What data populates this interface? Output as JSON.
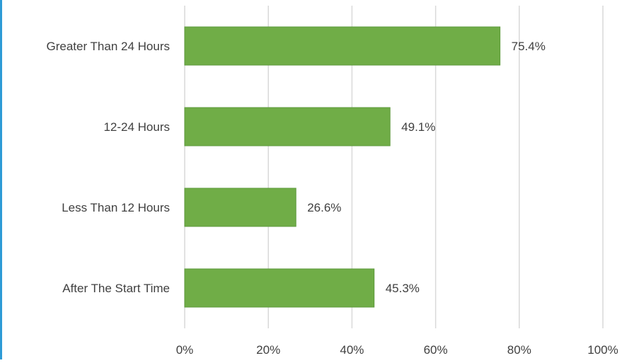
{
  "theme": {
    "bar_color": "#70AD47",
    "bar_edge_color": "#5E9A3C",
    "grid_color": "#D9D9D9",
    "text_color": "#404040",
    "left_accent_color": "#2E9BD6"
  },
  "chart_data": {
    "type": "bar",
    "orientation": "horizontal",
    "title": "",
    "xlabel": "",
    "ylabel": "",
    "categories": [
      "Greater Than 24 Hours",
      "12-24 Hours",
      "Less Than 12 Hours",
      "After The Start Time"
    ],
    "values": [
      75.4,
      49.1,
      26.6,
      45.3
    ],
    "value_labels": [
      "75.4%",
      "49.1%",
      "26.6%",
      "45.3%"
    ],
    "xlim": [
      0,
      100
    ],
    "x_ticks": [
      0,
      20,
      40,
      60,
      80,
      100
    ],
    "x_tick_labels": [
      "0%",
      "20%",
      "40%",
      "60%",
      "80%",
      "100%"
    ],
    "grid": "vertical",
    "legend": "none"
  }
}
